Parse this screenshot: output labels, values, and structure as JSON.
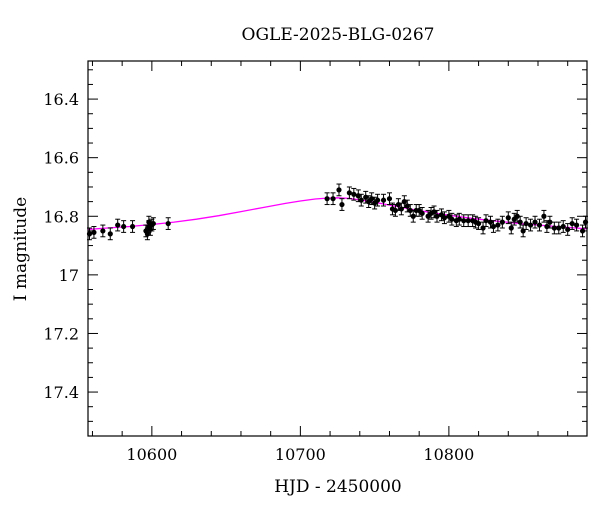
{
  "chart_data": {
    "type": "scatter",
    "title": "OGLE-2025-BLG-0267",
    "xlabel": "HJD - 2450000",
    "ylabel": "I magnitude",
    "xlim": [
      10557,
      10893
    ],
    "ylim": [
      17.55,
      16.27
    ],
    "y_inverted": true,
    "x_ticks": [
      10600,
      10700,
      10800
    ],
    "y_ticks": [
      16.4,
      16.6,
      16.8,
      17,
      17.2,
      17.4
    ],
    "x_ticks_minor_step": 20,
    "y_ticks_minor_step": 0.05,
    "grid": false,
    "point_color": "#000000",
    "model_color": "#ff00ff",
    "series": [
      {
        "kind": "points",
        "x": [
          10558,
          10561,
          10567,
          10572,
          10577,
          10581,
          10587,
          10596,
          10597,
          10598,
          10598,
          10599,
          10600,
          10601,
          10611,
          10718,
          10722,
          10726,
          10728,
          10733,
          10736,
          10739,
          10741,
          10744,
          10746,
          10748,
          10750,
          10752,
          10756,
          10760,
          10762,
          10764,
          10766,
          10768,
          10770,
          10772,
          10774,
          10776,
          10778,
          10780,
          10782,
          10786,
          10788,
          10790,
          10792,
          10795,
          10797,
          10800,
          10802,
          10805,
          10807,
          10810,
          10813,
          10816,
          10818,
          10820,
          10823,
          10825,
          10828,
          10830,
          10833,
          10836,
          10840,
          10842,
          10844,
          10846,
          10848,
          10850,
          10852,
          10855,
          10858,
          10861,
          10864,
          10866,
          10868,
          10871,
          10874,
          10877,
          10880,
          10883,
          10886,
          10890,
          10892
        ],
        "y": [
          16.86,
          16.855,
          16.85,
          16.86,
          16.83,
          16.835,
          16.835,
          16.85,
          16.86,
          16.835,
          16.82,
          16.845,
          16.83,
          16.825,
          16.825,
          16.74,
          16.74,
          16.71,
          16.76,
          16.72,
          16.725,
          16.73,
          16.745,
          16.735,
          16.75,
          16.74,
          16.755,
          16.745,
          16.745,
          16.74,
          16.775,
          16.78,
          16.76,
          16.775,
          16.75,
          16.765,
          16.78,
          16.8,
          16.78,
          16.78,
          16.79,
          16.8,
          16.79,
          16.785,
          16.8,
          16.795,
          16.805,
          16.8,
          16.81,
          16.815,
          16.81,
          16.815,
          16.815,
          16.815,
          16.82,
          16.825,
          16.84,
          16.815,
          16.82,
          16.835,
          16.83,
          16.82,
          16.805,
          16.84,
          16.81,
          16.8,
          16.82,
          16.85,
          16.825,
          16.83,
          16.82,
          16.83,
          16.8,
          16.835,
          16.82,
          16.84,
          16.84,
          16.835,
          16.845,
          16.825,
          16.83,
          16.85,
          16.82
        ],
        "y_err": 0.02
      },
      {
        "kind": "model",
        "x": [
          10557,
          10570,
          10585,
          10600,
          10615,
          10630,
          10645,
          10660,
          10675,
          10690,
          10700,
          10710,
          10718,
          10725,
          10733,
          10740,
          10750,
          10760,
          10775,
          10790,
          10805,
          10820,
          10835,
          10850,
          10865,
          10880,
          10893
        ],
        "y": [
          16.845,
          16.84,
          16.835,
          16.828,
          16.82,
          16.81,
          16.798,
          16.784,
          16.77,
          16.756,
          16.748,
          16.741,
          16.738,
          16.737,
          16.739,
          16.744,
          16.752,
          16.762,
          16.776,
          16.789,
          16.8,
          16.81,
          16.818,
          16.826,
          16.832,
          16.838,
          16.843
        ]
      }
    ]
  }
}
